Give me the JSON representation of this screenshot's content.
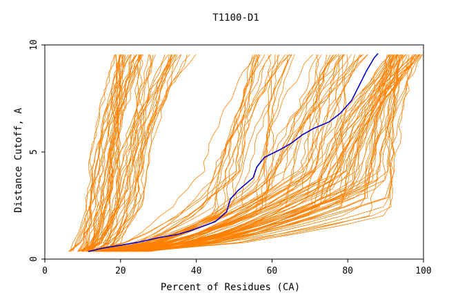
{
  "chart_data": {
    "type": "line",
    "title": "T1100-D1",
    "xlabel": "Percent of Residues (CA)",
    "ylabel": "Distance Cutoff, A",
    "xlim": [
      0,
      100
    ],
    "ylim": [
      0,
      10
    ],
    "x_ticks": [
      0,
      20,
      40,
      60,
      80,
      100
    ],
    "y_ticks": [
      0,
      5,
      10
    ],
    "grid": false,
    "legend": "none",
    "colors": {
      "highlight": "#0000cc",
      "background_models": "#ff8000",
      "axes": "#000000"
    },
    "highlight_series": {
      "points": [
        [
          11.5,
          0.35
        ],
        [
          15,
          0.5
        ],
        [
          20,
          0.65
        ],
        [
          25,
          0.8
        ],
        [
          30,
          1.0
        ],
        [
          35,
          1.15
        ],
        [
          38,
          1.3
        ],
        [
          42,
          1.55
        ],
        [
          45,
          1.75
        ],
        [
          48,
          2.2
        ],
        [
          49,
          2.8
        ],
        [
          51,
          3.2
        ],
        [
          53,
          3.5
        ],
        [
          55,
          3.8
        ],
        [
          56,
          4.3
        ],
        [
          58,
          4.75
        ],
        [
          62,
          5.1
        ],
        [
          65,
          5.4
        ],
        [
          68,
          5.8
        ],
        [
          71,
          6.1
        ],
        [
          75,
          6.4
        ],
        [
          78,
          6.8
        ],
        [
          81,
          7.4
        ],
        [
          83,
          8.1
        ],
        [
          85,
          8.8
        ],
        [
          87,
          9.4
        ],
        [
          88,
          9.6
        ]
      ]
    },
    "background_groups": [
      {
        "count": 28,
        "x_start": [
          6,
          13
        ],
        "x_mid": [
          12,
          20
        ],
        "x_end": [
          18,
          26
        ]
      },
      {
        "count": 26,
        "x_start": [
          9,
          17
        ],
        "x_mid": [
          17,
          28
        ],
        "x_end": [
          24,
          40
        ]
      },
      {
        "count": 22,
        "x_start": [
          10,
          20
        ],
        "x_mid": [
          40,
          60
        ],
        "x_end": [
          55,
          66
        ]
      },
      {
        "count": 26,
        "x_start": [
          12,
          24
        ],
        "x_mid": [
          55,
          80
        ],
        "x_end": [
          70,
          86
        ]
      },
      {
        "count": 50,
        "x_start": [
          14,
          28
        ],
        "x_mid": [
          70,
          92
        ],
        "x_end": [
          90,
          100
        ]
      }
    ]
  }
}
